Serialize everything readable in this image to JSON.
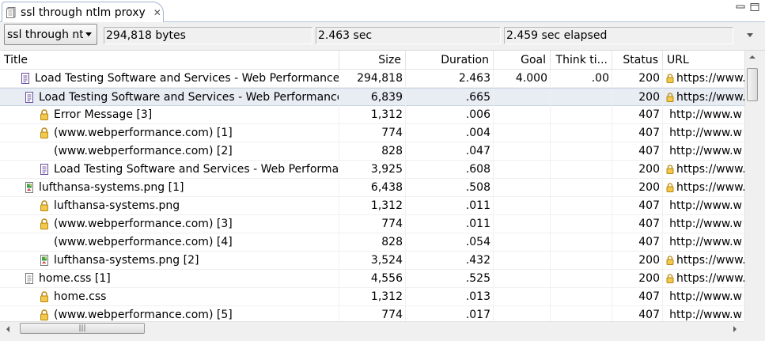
{
  "tab": {
    "title": "ssl through ntlm proxy",
    "close_glyph": "✕",
    "icon": "document-icon"
  },
  "summary": {
    "selector_value": "ssl through ntlm proxy",
    "size": "294,818 bytes",
    "duration": "2.463 sec",
    "elapsed": "2.459 sec elapsed"
  },
  "columns": {
    "title": "Title",
    "size": "Size",
    "duration": "Duration",
    "goal": "Goal",
    "think": "Think ti...",
    "status": "Status",
    "url": "URL"
  },
  "rows": [
    {
      "indent": 1,
      "icon": "page",
      "title": "Load Testing Software and Services - Web Performance",
      "size": "294,818",
      "duration": "2.463",
      "goal": "4.000",
      "think": ".00",
      "status": "200",
      "lock": true,
      "url": "https://www.",
      "selected": false
    },
    {
      "indent": 2,
      "icon": "page",
      "title": "Load Testing Software and Services - Web Performance",
      "size": "6,839",
      "duration": ".665",
      "goal": "",
      "think": "",
      "status": "200",
      "lock": true,
      "url": "https://www.",
      "selected": true
    },
    {
      "indent": 3,
      "icon": "lock",
      "title": "Error Message [3]",
      "size": "1,312",
      "duration": ".006",
      "goal": "",
      "think": "",
      "status": "407",
      "lock": false,
      "url": "http://www.w",
      "selected": false
    },
    {
      "indent": 3,
      "icon": "lock",
      "title": "(www.webperformance.com) [1]",
      "size": "774",
      "duration": ".004",
      "goal": "",
      "think": "",
      "status": "407",
      "lock": false,
      "url": "http://www.w",
      "selected": false
    },
    {
      "indent": 3,
      "icon": "none",
      "title": "(www.webperformance.com) [2]",
      "size": "828",
      "duration": ".047",
      "goal": "",
      "think": "",
      "status": "407",
      "lock": false,
      "url": "http://www.w",
      "selected": false
    },
    {
      "indent": 3,
      "icon": "page",
      "title": "Load Testing Software and Services - Web Performance",
      "size": "3,925",
      "duration": ".608",
      "goal": "",
      "think": "",
      "status": "200",
      "lock": true,
      "url": "https://www.",
      "selected": false
    },
    {
      "indent": 2,
      "icon": "image",
      "title": "lufthansa-systems.png [1]",
      "size": "6,438",
      "duration": ".508",
      "goal": "",
      "think": "",
      "status": "200",
      "lock": true,
      "url": "https://www.",
      "selected": false
    },
    {
      "indent": 3,
      "icon": "lock",
      "title": "lufthansa-systems.png",
      "size": "1,312",
      "duration": ".011",
      "goal": "",
      "think": "",
      "status": "407",
      "lock": false,
      "url": "http://www.w",
      "selected": false
    },
    {
      "indent": 3,
      "icon": "lock",
      "title": "(www.webperformance.com) [3]",
      "size": "774",
      "duration": ".011",
      "goal": "",
      "think": "",
      "status": "407",
      "lock": false,
      "url": "http://www.w",
      "selected": false
    },
    {
      "indent": 3,
      "icon": "none",
      "title": "(www.webperformance.com) [4]",
      "size": "828",
      "duration": ".054",
      "goal": "",
      "think": "",
      "status": "407",
      "lock": false,
      "url": "http://www.w",
      "selected": false
    },
    {
      "indent": 3,
      "icon": "image",
      "title": "lufthansa-systems.png [2]",
      "size": "3,524",
      "duration": ".432",
      "goal": "",
      "think": "",
      "status": "200",
      "lock": true,
      "url": "https://www.",
      "selected": false
    },
    {
      "indent": 2,
      "icon": "css",
      "title": "home.css [1]",
      "size": "4,556",
      "duration": ".525",
      "goal": "",
      "think": "",
      "status": "200",
      "lock": true,
      "url": "https://www.",
      "selected": false
    },
    {
      "indent": 3,
      "icon": "lock",
      "title": "home.css",
      "size": "1,312",
      "duration": ".013",
      "goal": "",
      "think": "",
      "status": "407",
      "lock": false,
      "url": "http://www.w",
      "selected": false
    },
    {
      "indent": 3,
      "icon": "lock",
      "title": "(www.webperformance.com) [5]",
      "size": "774",
      "duration": ".017",
      "goal": "",
      "think": "",
      "status": "407",
      "lock": false,
      "url": "http://www.w",
      "selected": false
    }
  ],
  "scrollbar": {
    "thumb_grip": "|||"
  },
  "colors": {
    "selection": "#e8ecf3",
    "page_icon": "#6a4fa0",
    "lock_icon": "#d9a520"
  }
}
